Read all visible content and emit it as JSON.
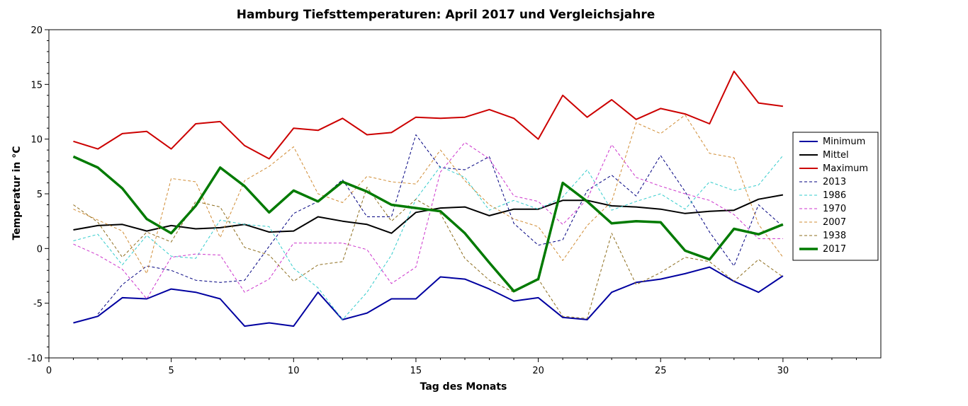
{
  "chart_data": {
    "type": "line",
    "title": "Hamburg Tiefsttemperaturen: April 2017 und Vergleichsjahre",
    "xlabel": "Tag des Monats",
    "ylabel": "Temperatur in °C",
    "xlim": [
      0,
      34
    ],
    "ylim": [
      -10,
      20
    ],
    "xticks": [
      0,
      5,
      10,
      15,
      20,
      25,
      30
    ],
    "yticks": [
      -10,
      -5,
      0,
      5,
      10,
      15,
      20
    ],
    "grid": false,
    "legend_position": "right",
    "x": [
      1,
      2,
      3,
      4,
      5,
      6,
      7,
      8,
      9,
      10,
      11,
      12,
      13,
      14,
      15,
      16,
      17,
      18,
      19,
      20,
      21,
      22,
      23,
      24,
      25,
      26,
      27,
      28,
      29,
      30
    ],
    "series": [
      {
        "name": "Minimum",
        "color": "#0000a0",
        "dash": "solid",
        "width": 2,
        "values": [
          -6.8,
          -6.2,
          -4.5,
          -4.6,
          -3.7,
          -4.0,
          -4.6,
          -7.1,
          -6.8,
          -7.1,
          -4.0,
          -6.5,
          -5.9,
          -4.6,
          -4.6,
          -2.6,
          -2.8,
          -3.7,
          -4.8,
          -4.5,
          -6.3,
          -6.5,
          -4.0,
          -3.1,
          -2.8,
          -2.3,
          -1.7,
          -3.0,
          -4.0,
          -2.5
        ]
      },
      {
        "name": "Mittel",
        "color": "#000000",
        "dash": "solid",
        "width": 2,
        "values": [
          1.7,
          2.1,
          2.2,
          1.6,
          2.1,
          1.8,
          1.9,
          2.2,
          1.5,
          1.6,
          2.9,
          2.5,
          2.2,
          1.4,
          3.3,
          3.7,
          3.8,
          3.0,
          3.6,
          3.6,
          4.4,
          4.4,
          3.9,
          3.8,
          3.6,
          3.2,
          3.4,
          3.5,
          4.5,
          4.9
        ]
      },
      {
        "name": "Maximum",
        "color": "#cc0000",
        "dash": "solid",
        "width": 2,
        "values": [
          9.8,
          9.1,
          10.5,
          10.7,
          9.1,
          11.4,
          11.6,
          9.4,
          8.2,
          11.0,
          10.8,
          11.9,
          10.4,
          10.6,
          12.0,
          11.9,
          12.0,
          12.7,
          11.9,
          10.0,
          14.0,
          12.0,
          13.6,
          11.8,
          12.8,
          12.3,
          11.4,
          16.2,
          13.3,
          13.0
        ]
      },
      {
        "name": "2013",
        "color": "#000080",
        "dash": "4,3",
        "width": 1,
        "values": [
          null,
          -6.0,
          -3.3,
          -1.6,
          -2.0,
          -2.9,
          -3.1,
          -2.9,
          0.2,
          3.2,
          4.3,
          6.3,
          2.9,
          2.9,
          10.4,
          7.4,
          7.2,
          8.4,
          2.3,
          0.3,
          0.8,
          5.3,
          6.7,
          4.8,
          8.5,
          5.2,
          1.5,
          -1.6,
          4.0,
          2.0
        ]
      },
      {
        "name": "1986",
        "color": "#33cccc",
        "dash": "4,3",
        "width": 1,
        "values": [
          0.7,
          1.3,
          -1.5,
          1.2,
          -0.7,
          -0.9,
          2.6,
          2.2,
          2.0,
          -1.8,
          -3.6,
          -6.5,
          -4.0,
          -0.6,
          4.5,
          7.5,
          6.5,
          3.5,
          4.4,
          3.6,
          4.7,
          7.2,
          3.5,
          4.3,
          5.0,
          3.6,
          6.1,
          5.3,
          5.8,
          8.5
        ]
      },
      {
        "name": "1970",
        "color": "#cc33cc",
        "dash": "4,3",
        "width": 1,
        "values": [
          0.4,
          -0.6,
          -1.9,
          -4.6,
          -0.8,
          -0.5,
          -0.6,
          -4.0,
          -2.8,
          0.5,
          0.5,
          0.5,
          -0.1,
          -3.2,
          -1.7,
          7.0,
          9.7,
          8.2,
          4.8,
          4.3,
          2.2,
          4.5,
          9.5,
          6.5,
          5.7,
          5.0,
          4.4,
          3.1,
          0.9,
          0.9
        ]
      },
      {
        "name": "2007",
        "color": "#d08c34",
        "dash": "4,3",
        "width": 1,
        "values": [
          3.6,
          2.6,
          1.6,
          -2.3,
          6.4,
          6.1,
          1.0,
          6.2,
          7.5,
          9.3,
          5.0,
          4.2,
          6.6,
          6.1,
          5.9,
          9.0,
          6.2,
          4.0,
          2.7,
          2.0,
          -1.1,
          2.1,
          4.3,
          11.5,
          10.5,
          12.2,
          8.7,
          8.3,
          2.2,
          -0.8
        ]
      },
      {
        "name": "1938",
        "color": "#8c6c1c",
        "dash": "4,3",
        "width": 1,
        "values": [
          4.0,
          2.4,
          -0.8,
          1.5,
          0.6,
          4.3,
          3.8,
          0.1,
          -0.6,
          -3.0,
          -1.5,
          -1.2,
          5.6,
          2.5,
          4.5,
          3.2,
          -0.9,
          -2.9,
          -4.0,
          -2.8,
          -6.2,
          -6.4,
          1.4,
          -3.3,
          -2.2,
          -0.8,
          -1.2,
          -3.0,
          -1.0,
          -2.6
        ]
      },
      {
        "name": "2017",
        "color": "#007a00",
        "dash": "solid",
        "width": 3.5,
        "values": [
          8.4,
          7.4,
          5.5,
          2.7,
          1.4,
          3.9,
          7.4,
          5.7,
          3.3,
          5.3,
          4.3,
          6.1,
          5.2,
          4.0,
          3.7,
          3.4,
          1.4,
          -1.3,
          -3.9,
          -2.8,
          6.0,
          4.3,
          2.3,
          2.5,
          2.4,
          -0.2,
          -1.0,
          1.8,
          1.3,
          2.2
        ]
      }
    ]
  }
}
